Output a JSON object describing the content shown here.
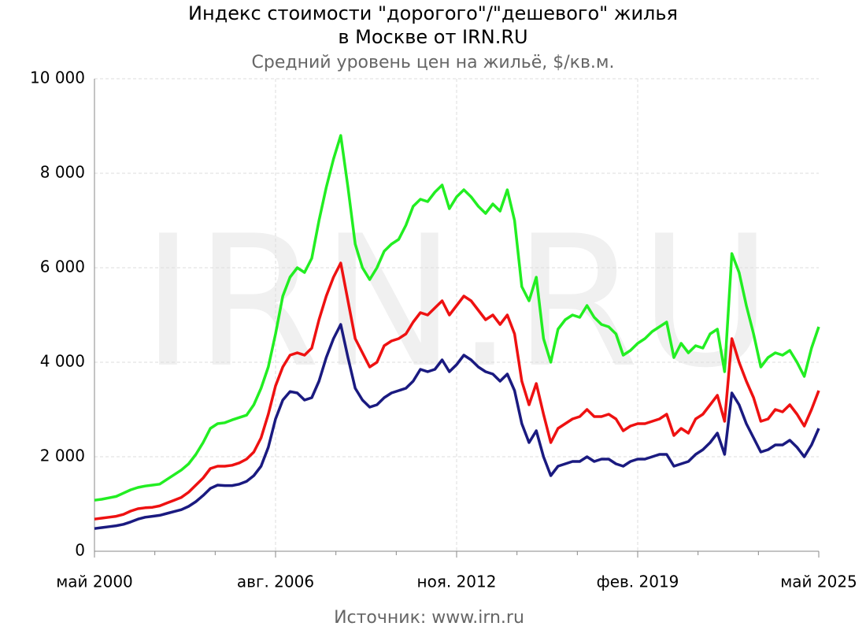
{
  "chart_data": {
    "type": "line",
    "title": [
      "Индекс стоимости \"дорогого\"/\"дешевого\" жилья",
      "в Москве от IRN.RU"
    ],
    "subtitle": "Средний уровень цен на жильё, $/кв.м.",
    "source": "Источник: www.irn.ru",
    "watermark": "IRN.RU",
    "categories": [
      "май 2000",
      null,
      null,
      null,
      null,
      null,
      null,
      null,
      null,
      null,
      null,
      null,
      null,
      null,
      null,
      null,
      null,
      null,
      null,
      null,
      null,
      null,
      null,
      null,
      null,
      "авг. 2006",
      null,
      null,
      null,
      null,
      null,
      null,
      null,
      null,
      null,
      null,
      null,
      null,
      null,
      null,
      null,
      null,
      null,
      null,
      null,
      null,
      null,
      null,
      null,
      null,
      "ноя. 2012",
      null,
      null,
      null,
      null,
      null,
      null,
      null,
      null,
      null,
      null,
      null,
      null,
      null,
      null,
      null,
      null,
      null,
      null,
      null,
      null,
      null,
      null,
      null,
      null,
      "фев. 2019",
      null,
      null,
      null,
      null,
      null,
      null,
      null,
      null,
      null,
      null,
      null,
      null,
      null,
      null,
      null,
      null,
      null,
      null,
      null,
      null,
      null,
      null,
      null,
      null,
      "май 2025"
    ],
    "series": [
      {
        "color": "#22ee22",
        "values": [
          1080,
          1100,
          1130,
          1160,
          1230,
          1300,
          1350,
          1380,
          1400,
          1420,
          1520,
          1620,
          1720,
          1850,
          2050,
          2300,
          2600,
          2700,
          2720,
          2780,
          2830,
          2880,
          3100,
          3450,
          3900,
          4600,
          5400,
          5800,
          6000,
          5900,
          6200,
          7000,
          7700,
          8300,
          8800,
          7700,
          6500,
          6000,
          5750,
          6000,
          6350,
          6500,
          6600,
          6900,
          7300,
          7450,
          7400,
          7600,
          7750,
          7250,
          7500,
          7650,
          7500,
          7300,
          7150,
          7350,
          7200,
          7650,
          7000,
          5600,
          5300,
          5800,
          4500,
          4000,
          4700,
          4900,
          5000,
          4950,
          5200,
          4950,
          4800,
          4750,
          4600,
          4150,
          4250,
          4400,
          4500,
          4650,
          4750,
          4850,
          4100,
          4400,
          4200,
          4350,
          4300,
          4600,
          4700,
          3800,
          6300,
          5900,
          5200,
          4600,
          3900,
          4100,
          4200,
          4150,
          4250,
          4000,
          3700,
          4300,
          4750
        ]
      },
      {
        "color": "#ee1111",
        "values": [
          680,
          700,
          720,
          740,
          780,
          850,
          900,
          920,
          930,
          960,
          1020,
          1080,
          1140,
          1250,
          1400,
          1550,
          1750,
          1800,
          1800,
          1820,
          1870,
          1950,
          2100,
          2400,
          2900,
          3500,
          3900,
          4150,
          4200,
          4150,
          4300,
          4900,
          5400,
          5800,
          6100,
          5300,
          4500,
          4200,
          3900,
          4000,
          4350,
          4450,
          4500,
          4600,
          4850,
          5050,
          5000,
          5150,
          5300,
          5000,
          5200,
          5400,
          5300,
          5100,
          4900,
          5000,
          4800,
          5000,
          4600,
          3600,
          3100,
          3550,
          2900,
          2300,
          2600,
          2700,
          2800,
          2850,
          3000,
          2850,
          2850,
          2900,
          2800,
          2550,
          2650,
          2700,
          2700,
          2750,
          2800,
          2900,
          2450,
          2600,
          2500,
          2800,
          2900,
          3100,
          3300,
          2750,
          4500,
          4000,
          3600,
          3250,
          2750,
          2800,
          3000,
          2950,
          3100,
          2900,
          2650,
          3000,
          3400
        ]
      },
      {
        "color": "#1a1a80",
        "values": [
          480,
          500,
          520,
          540,
          570,
          620,
          680,
          720,
          740,
          760,
          800,
          840,
          880,
          950,
          1050,
          1180,
          1330,
          1400,
          1390,
          1390,
          1420,
          1480,
          1600,
          1800,
          2200,
          2800,
          3200,
          3380,
          3350,
          3200,
          3250,
          3600,
          4100,
          4500,
          4800,
          4100,
          3450,
          3200,
          3050,
          3100,
          3250,
          3350,
          3400,
          3450,
          3600,
          3850,
          3800,
          3850,
          4050,
          3800,
          3950,
          4150,
          4050,
          3900,
          3800,
          3750,
          3600,
          3750,
          3400,
          2700,
          2300,
          2550,
          2000,
          1600,
          1800,
          1850,
          1900,
          1900,
          2000,
          1900,
          1950,
          1950,
          1850,
          1800,
          1900,
          1950,
          1950,
          2000,
          2050,
          2050,
          1800,
          1850,
          1900,
          2050,
          2150,
          2300,
          2500,
          2050,
          3350,
          3100,
          2700,
          2400,
          2100,
          2150,
          2250,
          2250,
          2350,
          2200,
          2000,
          2250,
          2600
        ]
      }
    ],
    "ylim": [
      0,
      10000
    ],
    "yticks": [
      0,
      {
        "value": 2000,
        "label": "2 000"
      },
      {
        "value": 4000,
        "label": "4 000"
      },
      {
        "value": 6000,
        "label": "6 000"
      },
      {
        "value": 8000,
        "label": "8 000"
      },
      {
        "value": 10000,
        "label": "10 000"
      }
    ],
    "grid": true
  }
}
